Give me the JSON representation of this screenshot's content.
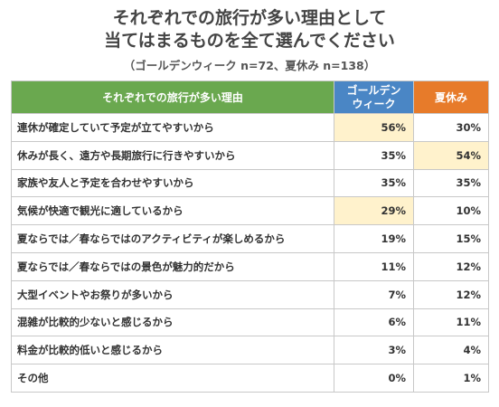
{
  "title_line1": "それぞれでの旅行が多い理由として",
  "title_line2": "当てはまるものを全て選んでください",
  "subtitle": "（ゴールデンウィーク n=72、夏休み n=138）",
  "colors": {
    "reason_header": "#6aa84f",
    "gw_header": "#4a86c5",
    "summer_header": "#e77b2a",
    "highlight": "#fff2cc"
  },
  "chart_data": {
    "type": "table",
    "columns": [
      "それぞれでの旅行が多い理由",
      "ゴールデンウィーク",
      "夏休み"
    ],
    "rows": [
      {
        "reason": "連休が確定していて予定が立てやすいから",
        "gw": "56%",
        "summer": "30%",
        "highlight": "gw"
      },
      {
        "reason": "休みが長く、遠方や長期旅行に行きやすいから",
        "gw": "35%",
        "summer": "54%",
        "highlight": "summer"
      },
      {
        "reason": "家族や友人と予定を合わせやすいから",
        "gw": "35%",
        "summer": "35%",
        "highlight": ""
      },
      {
        "reason": "気候が快適で観光に適しているから",
        "gw": "29%",
        "summer": "10%",
        "highlight": "gw"
      },
      {
        "reason": "夏ならでは／春ならではのアクティビティが楽しめるから",
        "gw": "19%",
        "summer": "15%",
        "highlight": ""
      },
      {
        "reason": "夏ならでは／春ならではの景色が魅力的だから",
        "gw": "11%",
        "summer": "12%",
        "highlight": ""
      },
      {
        "reason": "大型イベントやお祭りが多いから",
        "gw": "7%",
        "summer": "12%",
        "highlight": ""
      },
      {
        "reason": "混雑が比較的少ないと感じるから",
        "gw": "6%",
        "summer": "11%",
        "highlight": ""
      },
      {
        "reason": "料金が比較的低いと感じるから",
        "gw": "3%",
        "summer": "4%",
        "highlight": ""
      },
      {
        "reason": "その他",
        "gw": "0%",
        "summer": "1%",
        "highlight": ""
      }
    ]
  }
}
